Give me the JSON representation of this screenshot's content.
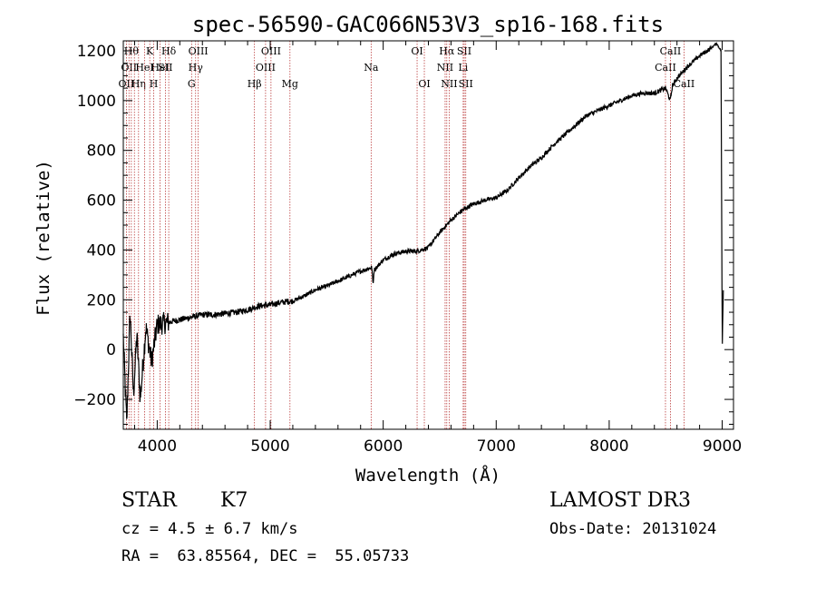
{
  "chart_data": {
    "type": "line",
    "title": "spec-56590-GAC066N53V3_sp16-168.fits",
    "xlabel": "Wavelength (Å)",
    "ylabel": "Flux (relative)",
    "xlim": [
      3700,
      9100
    ],
    "ylim": [
      -320,
      1240
    ],
    "x_ticks": [
      4000,
      5000,
      6000,
      7000,
      8000,
      9000
    ],
    "y_ticks": [
      -200,
      0,
      200,
      400,
      600,
      800,
      1000,
      1200
    ],
    "grid": false,
    "series": [
      {
        "name": "flux",
        "x": [
          3700,
          3730,
          3760,
          3790,
          3820,
          3850,
          3900,
          3950,
          4000,
          4100,
          4200,
          4300,
          4400,
          4500,
          4600,
          4700,
          4800,
          4900,
          5000,
          5100,
          5200,
          5300,
          5400,
          5500,
          5600,
          5700,
          5800,
          5900,
          5910,
          5920,
          6000,
          6100,
          6200,
          6300,
          6400,
          6500,
          6560,
          6600,
          6700,
          6800,
          6900,
          7000,
          7100,
          7200,
          7300,
          7400,
          7500,
          7600,
          7700,
          7800,
          7900,
          8000,
          8100,
          8200,
          8300,
          8400,
          8500,
          8540,
          8560,
          8600,
          8700,
          8800,
          8900,
          8950,
          8990,
          9000,
          9010
        ],
        "y": [
          50,
          -300,
          150,
          -180,
          60,
          -200,
          90,
          -50,
          100,
          110,
          120,
          130,
          140,
          140,
          145,
          150,
          160,
          175,
          180,
          190,
          195,
          215,
          240,
          255,
          275,
          295,
          315,
          330,
          260,
          320,
          360,
          385,
          395,
          395,
          410,
          470,
          500,
          520,
          560,
          585,
          600,
          610,
          640,
          690,
          735,
          770,
          820,
          860,
          900,
          940,
          960,
          980,
          1000,
          1020,
          1030,
          1030,
          1050,
          1000,
          1060,
          1090,
          1140,
          1180,
          1210,
          1230,
          1200,
          0,
          240
        ]
      }
    ],
    "lines": [
      {
        "w": 3727,
        "label": "OII",
        "row": 2
      },
      {
        "w": 3750,
        "label": "OII",
        "row": 1
      },
      {
        "w": 3771,
        "label": "Hθ",
        "row": 0
      },
      {
        "w": 3798,
        "label": "",
        "row": 0
      },
      {
        "w": 3835,
        "label": "Hη",
        "row": 2
      },
      {
        "w": 3889,
        "label": "HeI",
        "row": 1
      },
      {
        "w": 3934,
        "label": "K",
        "row": 0
      },
      {
        "w": 3969,
        "label": "H",
        "row": 2
      },
      {
        "w": 4026,
        "label": "HeI",
        "row": 1
      },
      {
        "w": 4072,
        "label": "SII",
        "row": 1
      },
      {
        "w": 4102,
        "label": "Hδ",
        "row": 0
      },
      {
        "w": 4304,
        "label": "G",
        "row": 2
      },
      {
        "w": 4340,
        "label": "Hγ",
        "row": 1
      },
      {
        "w": 4363,
        "label": "OIII",
        "row": 0
      },
      {
        "w": 4861,
        "label": "Hβ",
        "row": 2
      },
      {
        "w": 4959,
        "label": "OIII",
        "row": 1
      },
      {
        "w": 5007,
        "label": "OIII",
        "row": 0
      },
      {
        "w": 5175,
        "label": "Mg",
        "row": 2
      },
      {
        "w": 5893,
        "label": "Na",
        "row": 1
      },
      {
        "w": 6300,
        "label": "OI",
        "row": 0
      },
      {
        "w": 6364,
        "label": "OI",
        "row": 2
      },
      {
        "w": 6548,
        "label": "NII",
        "row": 1
      },
      {
        "w": 6563,
        "label": "Hα",
        "row": 0
      },
      {
        "w": 6584,
        "label": "NII",
        "row": 2
      },
      {
        "w": 6708,
        "label": "Li",
        "row": 1
      },
      {
        "w": 6717,
        "label": "SII",
        "row": 0
      },
      {
        "w": 6731,
        "label": "SII",
        "row": 2
      },
      {
        "w": 8498,
        "label": "CaII",
        "row": 1
      },
      {
        "w": 8542,
        "label": "CaII",
        "row": 0
      },
      {
        "w": 8662,
        "label": "CaII",
        "row": 2
      }
    ]
  },
  "info": {
    "class_label": "STAR",
    "subclass": "K7",
    "survey": "LAMOST DR3",
    "cz": "cz = 4.5 ± 6.7 km/s",
    "obs_date": "Obs-Date: 20131024",
    "coords": "RA =  63.85564, DEC =  55.05733"
  }
}
